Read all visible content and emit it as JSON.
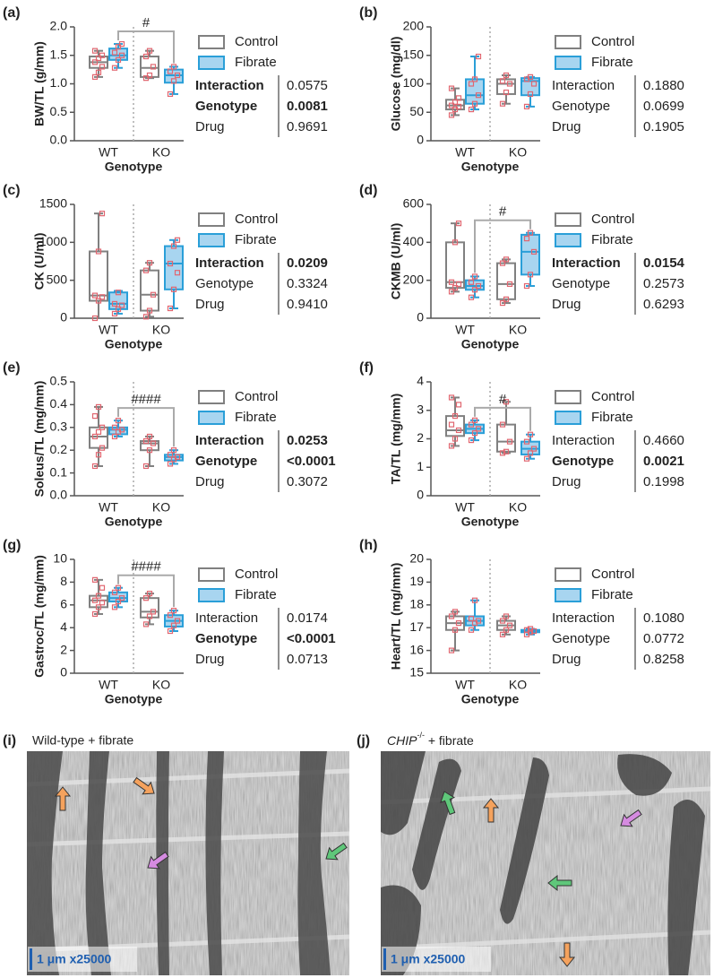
{
  "chart_data": [
    {
      "type": "box",
      "label": "(a)",
      "ylabel": "BW/TL (g/mm)",
      "xlabel": "Genotype",
      "categories": [
        "WT",
        "KO"
      ],
      "series": [
        {
          "name": "Control",
          "color": "#808080",
          "fill": "#ffffff",
          "boxes": [
            {
              "min": 1.12,
              "q1": 1.28,
              "median": 1.38,
              "q3": 1.48,
              "max": 1.58
            },
            {
              "min": 1.1,
              "q1": 1.12,
              "median": 1.28,
              "q3": 1.48,
              "max": 1.58
            }
          ],
          "points": [
            [
              1.12,
              1.2,
              1.3,
              1.38,
              1.45,
              1.5,
              1.58
            ],
            [
              1.1,
              1.15,
              1.3,
              1.48,
              1.58
            ]
          ]
        },
        {
          "name": "Fibrate",
          "color": "#2a9fd8",
          "fill": "#a8d5f0",
          "boxes": [
            {
              "min": 1.28,
              "q1": 1.42,
              "median": 1.5,
              "q3": 1.62,
              "max": 1.7
            },
            {
              "min": 0.82,
              "q1": 1.02,
              "median": 1.15,
              "q3": 1.25,
              "max": 1.3
            }
          ],
          "points": [
            [
              1.28,
              1.42,
              1.5,
              1.55,
              1.65,
              1.7
            ],
            [
              0.82,
              1.05,
              1.15,
              1.22,
              1.3
            ]
          ]
        }
      ],
      "point_color": "#e06670",
      "ylim": [
        0,
        2
      ],
      "yticks": [
        {
          "value": 0,
          "label": "0.0"
        },
        0.5,
        {
          "value": 1,
          "label": "1.0"
        },
        1.5,
        {
          "value": 2,
          "label": "2.0"
        }
      ],
      "annotation": "#",
      "stats": [
        {
          "label": "Interaction",
          "value": "0.0575",
          "label_bold": true,
          "value_bold": false
        },
        {
          "label": "Genotype",
          "value": "0.0081",
          "label_bold": true,
          "value_bold": true
        },
        {
          "label": "Drug",
          "value": "0.9691",
          "label_bold": false,
          "value_bold": false
        }
      ]
    },
    {
      "type": "box",
      "label": "(b)",
      "ylabel": "Glucose (mg/dl)",
      "xlabel": "Genotype",
      "categories": [
        "WT",
        "KO"
      ],
      "series": [
        {
          "name": "Control",
          "color": "#808080",
          "fill": "#ffffff",
          "boxes": [
            {
              "min": 45,
              "q1": 55,
              "median": 62,
              "q3": 72,
              "max": 92
            },
            {
              "min": 65,
              "q1": 82,
              "median": 100,
              "q3": 108,
              "max": 115
            }
          ],
          "points": [
            [
              45,
              55,
              60,
              62,
              68,
              75,
              92
            ],
            [
              65,
              85,
              100,
              105,
              115
            ]
          ]
        },
        {
          "name": "Fibrate",
          "color": "#2a9fd8",
          "fill": "#a8d5f0",
          "boxes": [
            {
              "min": 55,
              "q1": 65,
              "median": 80,
              "q3": 108,
              "max": 148
            },
            {
              "min": 60,
              "q1": 80,
              "median": 105,
              "q3": 110,
              "max": 112
            }
          ],
          "points": [
            [
              55,
              65,
              80,
              100,
              108,
              148
            ],
            [
              60,
              82,
              100,
              108,
              112
            ]
          ]
        }
      ],
      "point_color": "#e06670",
      "ylim": [
        0,
        200
      ],
      "yticks": [
        0,
        50,
        100,
        150,
        200
      ],
      "stats": [
        {
          "label": "Interaction",
          "value": "0.1880",
          "label_bold": false,
          "value_bold": false
        },
        {
          "label": "Genotype",
          "value": "0.0699",
          "label_bold": false,
          "value_bold": false
        },
        {
          "label": "Drug",
          "value": "0.1905",
          "label_bold": false,
          "value_bold": false
        }
      ]
    },
    {
      "type": "box",
      "label": "(c)",
      "ylabel": "CK (U/ml)",
      "xlabel": "Genotype",
      "categories": [
        "WT",
        "KO"
      ],
      "series": [
        {
          "name": "Control",
          "color": "#808080",
          "fill": "#ffffff",
          "boxes": [
            {
              "min": 0,
              "q1": 230,
              "median": 300,
              "q3": 880,
              "max": 1380
            },
            {
              "min": 20,
              "q1": 100,
              "median": 310,
              "q3": 630,
              "max": 730
            }
          ],
          "points": [
            [
              0,
              230,
              280,
              300,
              880,
              1380
            ],
            [
              20,
              100,
              310,
              630,
              730
            ]
          ]
        },
        {
          "name": "Fibrate",
          "color": "#2a9fd8",
          "fill": "#a8d5f0",
          "boxes": [
            {
              "min": 60,
              "q1": 120,
              "median": 190,
              "q3": 340,
              "max": 360
            },
            {
              "min": 130,
              "q1": 380,
              "median": 720,
              "q3": 950,
              "max": 1030
            }
          ],
          "points": [
            [
              60,
              120,
              170,
              190,
              340
            ],
            [
              130,
              380,
              600,
              720,
              950,
              1030
            ]
          ]
        }
      ],
      "point_color": "#e06670",
      "ylim": [
        0,
        1500
      ],
      "yticks": [
        0,
        500,
        1000,
        1500
      ],
      "stats": [
        {
          "label": "Interaction",
          "value": "0.0209",
          "label_bold": true,
          "value_bold": true
        },
        {
          "label": "Genotype",
          "value": "0.3324",
          "label_bold": false,
          "value_bold": false
        },
        {
          "label": "Drug",
          "value": "0.9410",
          "label_bold": false,
          "value_bold": false
        }
      ]
    },
    {
      "type": "box",
      "label": "(d)",
      "ylabel": "CKMB (U/ml)",
      "xlabel": "Genotype",
      "categories": [
        "WT",
        "KO"
      ],
      "series": [
        {
          "name": "Control",
          "color": "#808080",
          "fill": "#ffffff",
          "boxes": [
            {
              "min": 140,
              "q1": 160,
              "median": 190,
              "q3": 400,
              "max": 500
            },
            {
              "min": 80,
              "q1": 100,
              "median": 180,
              "q3": 290,
              "max": 310
            }
          ],
          "points": [
            [
              140,
              160,
              180,
              190,
              400,
              500
            ],
            [
              80,
              100,
              180,
              290,
              310
            ]
          ]
        },
        {
          "name": "Fibrate",
          "color": "#2a9fd8",
          "fill": "#a8d5f0",
          "boxes": [
            {
              "min": 110,
              "q1": 150,
              "median": 170,
              "q3": 200,
              "max": 220
            },
            {
              "min": 170,
              "q1": 230,
              "median": 350,
              "q3": 440,
              "max": 450
            }
          ],
          "points": [
            [
              110,
              150,
              170,
              190,
              220
            ],
            [
              170,
              230,
              350,
              420,
              450
            ]
          ]
        }
      ],
      "point_color": "#e06670",
      "ylim": [
        0,
        600
      ],
      "yticks": [
        0,
        200,
        400,
        600
      ],
      "annotation": "#",
      "stats": [
        {
          "label": "Interaction",
          "value": "0.0154",
          "label_bold": true,
          "value_bold": true
        },
        {
          "label": "Genotype",
          "value": "0.2573",
          "label_bold": false,
          "value_bold": false
        },
        {
          "label": "Drug",
          "value": "0.6293",
          "label_bold": false,
          "value_bold": false
        }
      ]
    },
    {
      "type": "box",
      "label": "(e)",
      "ylabel": "Soleus/TL (mg/mm)",
      "xlabel": "Genotype",
      "categories": [
        "WT",
        "KO"
      ],
      "series": [
        {
          "name": "Control",
          "color": "#808080",
          "fill": "#ffffff",
          "boxes": [
            {
              "min": 0.13,
              "q1": 0.21,
              "median": 0.26,
              "q3": 0.3,
              "max": 0.39
            },
            {
              "min": 0.13,
              "q1": 0.2,
              "median": 0.23,
              "q3": 0.24,
              "max": 0.26
            }
          ],
          "points": [
            [
              0.13,
              0.18,
              0.21,
              0.26,
              0.28,
              0.3,
              0.35,
              0.39
            ],
            [
              0.13,
              0.2,
              0.23,
              0.24,
              0.26
            ]
          ]
        },
        {
          "name": "Fibrate",
          "color": "#2a9fd8",
          "fill": "#a8d5f0",
          "boxes": [
            {
              "min": 0.26,
              "q1": 0.27,
              "median": 0.29,
              "q3": 0.3,
              "max": 0.33
            },
            {
              "min": 0.14,
              "q1": 0.155,
              "median": 0.17,
              "q3": 0.18,
              "max": 0.2
            }
          ],
          "points": [
            [
              0.26,
              0.28,
              0.29,
              0.3,
              0.33
            ],
            [
              0.14,
              0.16,
              0.17,
              0.18,
              0.2
            ]
          ]
        }
      ],
      "point_color": "#e06670",
      "ylim": [
        0,
        0.5
      ],
      "yticks": [
        {
          "value": 0,
          "label": "0.0"
        },
        0.1,
        0.2,
        0.3,
        0.4,
        0.5
      ],
      "annotation": "####",
      "stats": [
        {
          "label": "Interaction",
          "value": "0.0253",
          "label_bold": true,
          "value_bold": true
        },
        {
          "label": "Genotype",
          "value": "<0.0001",
          "label_bold": true,
          "value_bold": true
        },
        {
          "label": "Drug",
          "value": "0.3072",
          "label_bold": false,
          "value_bold": false
        }
      ]
    },
    {
      "type": "box",
      "label": "(f)",
      "ylabel": "TA/TL (mg/mm)",
      "xlabel": "Genotype",
      "categories": [
        "WT",
        "KO"
      ],
      "series": [
        {
          "name": "Control",
          "color": "#808080",
          "fill": "#ffffff",
          "boxes": [
            {
              "min": 1.75,
              "q1": 2.1,
              "median": 2.3,
              "q3": 2.8,
              "max": 3.45
            },
            {
              "min": 1.5,
              "q1": 1.55,
              "median": 1.9,
              "q3": 2.5,
              "max": 3.3
            }
          ],
          "points": [
            [
              1.75,
              2.0,
              2.3,
              2.5,
              2.8,
              3.2,
              3.45
            ],
            [
              1.5,
              1.55,
              1.9,
              2.5,
              3.3
            ]
          ]
        },
        {
          "name": "Fibrate",
          "color": "#2a9fd8",
          "fill": "#a8d5f0",
          "boxes": [
            {
              "min": 1.95,
              "q1": 2.2,
              "median": 2.35,
              "q3": 2.5,
              "max": 2.65
            },
            {
              "min": 1.3,
              "q1": 1.45,
              "median": 1.65,
              "q3": 1.9,
              "max": 2.15
            }
          ],
          "points": [
            [
              1.95,
              2.2,
              2.35,
              2.5,
              2.65
            ],
            [
              1.3,
              1.5,
              1.65,
              1.9,
              2.15
            ]
          ]
        }
      ],
      "point_color": "#e06670",
      "ylim": [
        0,
        4
      ],
      "yticks": [
        0,
        1,
        2,
        3,
        4
      ],
      "annotation": "#",
      "stats": [
        {
          "label": "Interaction",
          "value": "0.4660",
          "label_bold": false,
          "value_bold": false
        },
        {
          "label": "Genotype",
          "value": "0.0021",
          "label_bold": true,
          "value_bold": true
        },
        {
          "label": "Drug",
          "value": "0.1998",
          "label_bold": false,
          "value_bold": false
        }
      ]
    },
    {
      "type": "box",
      "label": "(g)",
      "ylabel": "Gastroc/TL (mg/mm)",
      "xlabel": "Genotype",
      "categories": [
        "WT",
        "KO"
      ],
      "series": [
        {
          "name": "Control",
          "color": "#808080",
          "fill": "#ffffff",
          "boxes": [
            {
              "min": 5.2,
              "q1": 5.8,
              "median": 6.4,
              "q3": 6.8,
              "max": 8.2
            },
            {
              "min": 4.3,
              "q1": 4.9,
              "median": 5.4,
              "q3": 6.6,
              "max": 7.0
            }
          ],
          "points": [
            [
              5.2,
              5.8,
              6.2,
              6.4,
              6.8,
              7.5,
              8.2
            ],
            [
              4.3,
              5.0,
              5.4,
              6.6,
              7.0
            ]
          ]
        },
        {
          "name": "Fibrate",
          "color": "#2a9fd8",
          "fill": "#a8d5f0",
          "boxes": [
            {
              "min": 5.8,
              "q1": 6.3,
              "median": 6.6,
              "q3": 7.1,
              "max": 7.5
            },
            {
              "min": 3.7,
              "q1": 4.1,
              "median": 4.6,
              "q3": 5.1,
              "max": 5.5
            }
          ],
          "points": [
            [
              5.8,
              6.3,
              6.6,
              7.1,
              7.5
            ],
            [
              3.7,
              4.2,
              4.6,
              5.1,
              5.5
            ]
          ]
        }
      ],
      "point_color": "#e06670",
      "ylim": [
        0,
        10
      ],
      "yticks": [
        0,
        2,
        4,
        6,
        8,
        10
      ],
      "annotation": "####",
      "stats": [
        {
          "label": "Interaction",
          "value": "0.0174",
          "label_bold": false,
          "value_bold": false
        },
        {
          "label": "Genotype",
          "value": "<0.0001",
          "label_bold": true,
          "value_bold": true
        },
        {
          "label": "Drug",
          "value": "0.0713",
          "label_bold": false,
          "value_bold": false
        }
      ]
    },
    {
      "type": "box",
      "label": "(h)",
      "ylabel": "Heart/TL (mg/mm)",
      "xlabel": "Genotype",
      "categories": [
        "WT",
        "KO"
      ],
      "series": [
        {
          "name": "Control",
          "color": "#808080",
          "fill": "#ffffff",
          "boxes": [
            {
              "min": 16.0,
              "q1": 16.9,
              "median": 17.2,
              "q3": 17.5,
              "max": 17.7
            },
            {
              "min": 16.7,
              "q1": 16.9,
              "median": 17.1,
              "q3": 17.3,
              "max": 17.5
            }
          ],
          "points": [
            [
              16.0,
              16.9,
              17.2,
              17.5,
              17.7
            ],
            [
              16.7,
              16.9,
              17.1,
              17.3,
              17.5
            ]
          ]
        },
        {
          "name": "Fibrate",
          "color": "#2a9fd8",
          "fill": "#a8d5f0",
          "boxes": [
            {
              "min": 16.9,
              "q1": 17.1,
              "median": 17.3,
              "q3": 17.5,
              "max": 18.2
            },
            {
              "min": 16.7,
              "q1": 16.8,
              "median": 16.85,
              "q3": 16.9,
              "max": 16.95
            }
          ],
          "points": [
            [
              16.9,
              17.2,
              17.3,
              17.4,
              18.2
            ],
            [
              16.7,
              16.8,
              16.85,
              16.9,
              16.95
            ]
          ]
        }
      ],
      "point_color": "#e06670",
      "ylim": [
        15,
        20
      ],
      "yticks": [
        15,
        16,
        17,
        18,
        19,
        20
      ],
      "stats": [
        {
          "label": "Interaction",
          "value": "0.1080",
          "label_bold": false,
          "value_bold": false
        },
        {
          "label": "Genotype",
          "value": "0.0772",
          "label_bold": false,
          "value_bold": false
        },
        {
          "label": "Drug",
          "value": "0.8258",
          "label_bold": false,
          "value_bold": false
        }
      ]
    }
  ],
  "micrographs": [
    {
      "label": "(i)",
      "title": "Wild-type + fibrate",
      "scale": "1 μm x25000"
    },
    {
      "label": "(j)",
      "title_gene": "CHIP",
      "title_sup": "-/-",
      "title_rest": " + fibrate",
      "scale": "1 μm x25000"
    }
  ]
}
